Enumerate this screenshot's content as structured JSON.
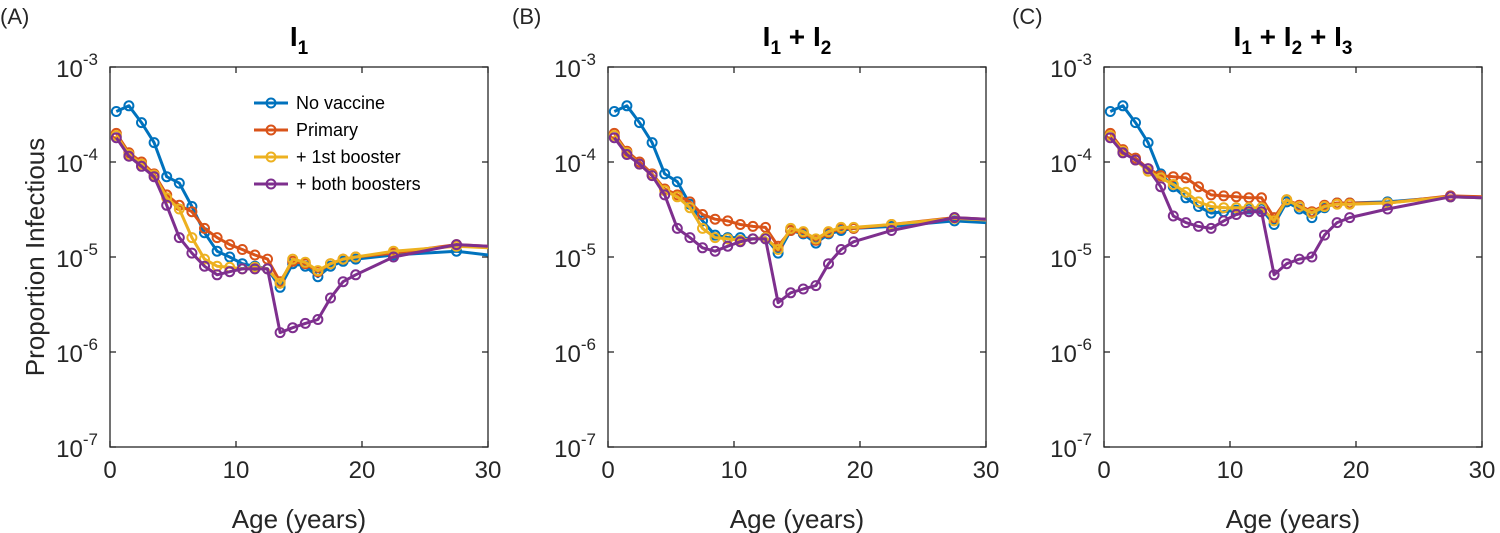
{
  "figure": {
    "y_axis_label": "Proportion Infectious",
    "panels": [
      {
        "label": "(A)",
        "title_parts": [
          {
            "t": "I"
          },
          {
            "s": "1"
          }
        ]
      },
      {
        "label": "(B)",
        "title_parts": [
          {
            "t": "I"
          },
          {
            "s": "1"
          },
          {
            "t": " + I"
          },
          {
            "s": "2"
          }
        ]
      },
      {
        "label": "(C)",
        "title_parts": [
          {
            "t": "I"
          },
          {
            "s": "1"
          },
          {
            "t": " + I"
          },
          {
            "s": "2"
          },
          {
            "t": " + I"
          },
          {
            "s": "3"
          }
        ]
      }
    ]
  },
  "chart_data": [
    {
      "type": "line",
      "title": "I1",
      "xlabel": "Age (years)",
      "ylabel": "Proportion Infectious",
      "xlim": [
        0,
        30
      ],
      "ylim": [
        1e-07,
        0.001
      ],
      "yscale": "log",
      "xticks": [
        0,
        10,
        20,
        30
      ],
      "yticks": [
        {
          "base": "10",
          "exp": "-7",
          "v": 1e-07
        },
        {
          "base": "10",
          "exp": "-6",
          "v": 1e-06
        },
        {
          "base": "10",
          "exp": "-5",
          "v": 1e-05
        },
        {
          "base": "10",
          "exp": "-4",
          "v": 0.0001
        },
        {
          "base": "10",
          "exp": "-3",
          "v": 0.001
        }
      ],
      "grid": false,
      "legend": "top-right",
      "series": [
        {
          "name": "No vaccine",
          "color": "#0072BD",
          "x": [
            0.5,
            1.5,
            2.5,
            3.5,
            4.5,
            5.5,
            6.5,
            7.5,
            8.5,
            9.5,
            10.5,
            11.5,
            12.5,
            13.5,
            14.5,
            15.5,
            16.5,
            17.5,
            18.5,
            19.5,
            22.5,
            27.5,
            30
          ],
          "y": [
            0.00034,
            0.00039,
            0.00026,
            0.00016,
            7e-05,
            6e-05,
            3.4e-05,
            1.8e-05,
            1.15e-05,
            1e-05,
            8.5e-06,
            8e-06,
            7.5e-06,
            4.8e-06,
            8.5e-06,
            8e-06,
            6.2e-06,
            8e-06,
            9e-06,
            9.5e-06,
            1.05e-05,
            1.15e-05,
            1.05e-05
          ]
        },
        {
          "name": "Primary",
          "color": "#D95319",
          "x": [
            0.5,
            1.5,
            2.5,
            3.5,
            4.5,
            5.5,
            6.5,
            7.5,
            8.5,
            9.5,
            10.5,
            11.5,
            12.5,
            13.5,
            14.5,
            15.5,
            16.5,
            17.5,
            18.5,
            19.5,
            22.5,
            27.5,
            30
          ],
          "y": [
            0.0002,
            0.000125,
            0.0001,
            7.5e-05,
            4.5e-05,
            3.5e-05,
            3e-05,
            2e-05,
            1.6e-05,
            1.35e-05,
            1.2e-05,
            1.05e-05,
            9.5e-06,
            5.5e-06,
            9e-06,
            8.5e-06,
            7e-06,
            8.5e-06,
            9.5e-06,
            1e-05,
            1.1e-05,
            1.35e-05,
            1.3e-05
          ]
        },
        {
          "name": "+ 1st booster",
          "color": "#EDB120",
          "x": [
            0.5,
            1.5,
            2.5,
            3.5,
            4.5,
            5.5,
            6.5,
            7.5,
            8.5,
            9.5,
            10.5,
            11.5,
            12.5,
            13.5,
            14.5,
            15.5,
            16.5,
            17.5,
            18.5,
            19.5,
            22.5,
            27.5,
            30
          ],
          "y": [
            0.00019,
            0.00012,
            9.5e-05,
            7.3e-05,
            4.2e-05,
            3.2e-05,
            1.6e-05,
            9.5e-06,
            8e-06,
            7.8e-06,
            7.5e-06,
            7.8e-06,
            7.5e-06,
            5.3e-06,
            9.5e-06,
            8.8e-06,
            7.2e-06,
            8.5e-06,
            9.5e-06,
            1e-05,
            1.15e-05,
            1.3e-05,
            1.25e-05
          ]
        },
        {
          "name": "+ both boosters",
          "color": "#7E2F8E",
          "x": [
            0.5,
            1.5,
            2.5,
            3.5,
            4.5,
            5.5,
            6.5,
            7.5,
            8.5,
            9.5,
            10.5,
            11.5,
            12.5,
            13.5,
            14.5,
            15.5,
            16.5,
            17.5,
            18.5,
            19.5,
            22.5,
            27.5,
            30
          ],
          "y": [
            0.00018,
            0.000115,
            9e-05,
            7e-05,
            3.5e-05,
            1.6e-05,
            1.1e-05,
            8e-06,
            6.5e-06,
            7e-06,
            7.5e-06,
            7.5e-06,
            7.5e-06,
            1.6e-06,
            1.8e-06,
            2e-06,
            2.2e-06,
            3.7e-06,
            5.5e-06,
            6.5e-06,
            1e-05,
            1.35e-05,
            1.3e-05
          ]
        }
      ]
    },
    {
      "type": "line",
      "title": "I1 + I2",
      "xlabel": "Age (years)",
      "ylabel": "",
      "xlim": [
        0,
        30
      ],
      "ylim": [
        1e-07,
        0.001
      ],
      "yscale": "log",
      "xticks": [
        0,
        10,
        20,
        30
      ],
      "yticks": [
        {
          "base": "10",
          "exp": "-7",
          "v": 1e-07
        },
        {
          "base": "10",
          "exp": "-6",
          "v": 1e-06
        },
        {
          "base": "10",
          "exp": "-5",
          "v": 1e-05
        },
        {
          "base": "10",
          "exp": "-4",
          "v": 0.0001
        },
        {
          "base": "10",
          "exp": "-3",
          "v": 0.001
        }
      ],
      "grid": false,
      "series": [
        {
          "name": "No vaccine",
          "color": "#0072BD",
          "x": [
            0.5,
            1.5,
            2.5,
            3.5,
            4.5,
            5.5,
            6.5,
            7.5,
            8.5,
            9.5,
            10.5,
            11.5,
            12.5,
            13.5,
            14.5,
            15.5,
            16.5,
            17.5,
            18.5,
            19.5,
            22.5,
            27.5,
            30
          ],
          "y": [
            0.00034,
            0.00039,
            0.00026,
            0.00016,
            7.5e-05,
            6.2e-05,
            3.6e-05,
            2.4e-05,
            1.7e-05,
            1.6e-05,
            1.6e-05,
            1.55e-05,
            1.6e-05,
            1.1e-05,
            1.9e-05,
            1.75e-05,
            1.4e-05,
            1.75e-05,
            1.9e-05,
            2e-05,
            2.1e-05,
            2.4e-05,
            2.3e-05
          ]
        },
        {
          "name": "Primary",
          "color": "#D95319",
          "x": [
            0.5,
            1.5,
            2.5,
            3.5,
            4.5,
            5.5,
            6.5,
            7.5,
            8.5,
            9.5,
            10.5,
            11.5,
            12.5,
            13.5,
            14.5,
            15.5,
            16.5,
            17.5,
            18.5,
            19.5,
            22.5,
            27.5,
            30
          ],
          "y": [
            0.0002,
            0.00013,
            0.0001,
            7.5e-05,
            5.2e-05,
            4.5e-05,
            3.8e-05,
            2.8e-05,
            2.5e-05,
            2.4e-05,
            2.2e-05,
            2.1e-05,
            2.05e-05,
            1.3e-05,
            1.9e-05,
            1.8e-05,
            1.5e-05,
            1.8e-05,
            2e-05,
            2e-05,
            2.2e-05,
            2.6e-05,
            2.5e-05
          ]
        },
        {
          "name": "+ 1st booster",
          "color": "#EDB120",
          "x": [
            0.5,
            1.5,
            2.5,
            3.5,
            4.5,
            5.5,
            6.5,
            7.5,
            8.5,
            9.5,
            10.5,
            11.5,
            12.5,
            13.5,
            14.5,
            15.5,
            16.5,
            17.5,
            18.5,
            19.5,
            22.5,
            27.5,
            30
          ],
          "y": [
            0.00019,
            0.000125,
            9.5e-05,
            7.3e-05,
            5e-05,
            4.3e-05,
            3.3e-05,
            2e-05,
            1.6e-05,
            1.55e-05,
            1.5e-05,
            1.55e-05,
            1.6e-05,
            1.2e-05,
            2e-05,
            1.85e-05,
            1.55e-05,
            1.85e-05,
            2.05e-05,
            2.05e-05,
            2.2e-05,
            2.55e-05,
            2.45e-05
          ]
        },
        {
          "name": "+ both boosters",
          "color": "#7E2F8E",
          "x": [
            0.5,
            1.5,
            2.5,
            3.5,
            4.5,
            5.5,
            6.5,
            7.5,
            8.5,
            9.5,
            10.5,
            11.5,
            12.5,
            13.5,
            14.5,
            15.5,
            16.5,
            17.5,
            18.5,
            19.5,
            22.5,
            27.5,
            30
          ],
          "y": [
            0.00018,
            0.00012,
            9.5e-05,
            7.2e-05,
            4.5e-05,
            2e-05,
            1.6e-05,
            1.25e-05,
            1.15e-05,
            1.3e-05,
            1.45e-05,
            1.55e-05,
            1.55e-05,
            3.3e-06,
            4.2e-06,
            4.6e-06,
            5e-06,
            8.5e-06,
            1.2e-05,
            1.45e-05,
            1.9e-05,
            2.6e-05,
            2.5e-05
          ]
        }
      ]
    },
    {
      "type": "line",
      "title": "I1 + I2 + I3",
      "xlabel": "Age (years)",
      "ylabel": "",
      "xlim": [
        0,
        30
      ],
      "ylim": [
        1e-07,
        0.001
      ],
      "yscale": "log",
      "xticks": [
        0,
        10,
        20,
        30
      ],
      "yticks": [
        {
          "base": "10",
          "exp": "-7",
          "v": 1e-07
        },
        {
          "base": "10",
          "exp": "-6",
          "v": 1e-06
        },
        {
          "base": "10",
          "exp": "-5",
          "v": 1e-05
        },
        {
          "base": "10",
          "exp": "-4",
          "v": 0.0001
        },
        {
          "base": "10",
          "exp": "-3",
          "v": 0.001
        }
      ],
      "grid": false,
      "series": [
        {
          "name": "No vaccine",
          "color": "#0072BD",
          "x": [
            0.5,
            1.5,
            2.5,
            3.5,
            4.5,
            5.5,
            6.5,
            7.5,
            8.5,
            9.5,
            10.5,
            11.5,
            12.5,
            13.5,
            14.5,
            15.5,
            16.5,
            17.5,
            18.5,
            19.5,
            22.5,
            27.5,
            30
          ],
          "y": [
            0.00034,
            0.00039,
            0.00026,
            0.00016,
            7.5e-05,
            5.5e-05,
            4.2e-05,
            3.4e-05,
            2.9e-05,
            3e-05,
            3.1e-05,
            3.2e-05,
            3.2e-05,
            2.2e-05,
            3.8e-05,
            3.2e-05,
            2.6e-05,
            3.3e-05,
            3.7e-05,
            3.7e-05,
            3.8e-05,
            4.3e-05,
            4.2e-05
          ]
        },
        {
          "name": "Primary",
          "color": "#D95319",
          "x": [
            0.5,
            1.5,
            2.5,
            3.5,
            4.5,
            5.5,
            6.5,
            7.5,
            8.5,
            9.5,
            10.5,
            11.5,
            12.5,
            13.5,
            14.5,
            15.5,
            16.5,
            17.5,
            18.5,
            19.5,
            22.5,
            27.5,
            30
          ],
          "y": [
            0.0002,
            0.000135,
            0.00011,
            8.5e-05,
            7.2e-05,
            7e-05,
            6.8e-05,
            5.5e-05,
            4.5e-05,
            4.4e-05,
            4.3e-05,
            4.2e-05,
            4.2e-05,
            2.6e-05,
            4e-05,
            3.5e-05,
            3e-05,
            3.5e-05,
            3.7e-05,
            3.7e-05,
            3.7e-05,
            4.4e-05,
            4.3e-05
          ]
        },
        {
          "name": "+ 1st booster",
          "color": "#EDB120",
          "x": [
            0.5,
            1.5,
            2.5,
            3.5,
            4.5,
            5.5,
            6.5,
            7.5,
            8.5,
            9.5,
            10.5,
            11.5,
            12.5,
            13.5,
            14.5,
            15.5,
            16.5,
            17.5,
            18.5,
            19.5,
            22.5,
            27.5,
            30
          ],
          "y": [
            0.00019,
            0.00013,
            0.000105,
            8e-05,
            6.8e-05,
            5.8e-05,
            4.8e-05,
            3.8e-05,
            3.4e-05,
            3.3e-05,
            3.3e-05,
            3.3e-05,
            3.3e-05,
            2.4e-05,
            4e-05,
            3.4e-05,
            2.9e-05,
            3.4e-05,
            3.6e-05,
            3.6e-05,
            3.7e-05,
            4.3e-05,
            4.2e-05
          ]
        },
        {
          "name": "+ both boosters",
          "color": "#7E2F8E",
          "x": [
            0.5,
            1.5,
            2.5,
            3.5,
            4.5,
            5.5,
            6.5,
            7.5,
            8.5,
            9.5,
            10.5,
            11.5,
            12.5,
            13.5,
            14.5,
            15.5,
            16.5,
            17.5,
            18.5,
            19.5,
            22.5,
            27.5,
            30
          ],
          "y": [
            0.00018,
            0.000125,
            0.000105,
            8.5e-05,
            5.5e-05,
            2.7e-05,
            2.3e-05,
            2.1e-05,
            2e-05,
            2.4e-05,
            2.8e-05,
            3e-05,
            3e-05,
            6.5e-06,
            8.5e-06,
            9.5e-06,
            1e-05,
            1.7e-05,
            2.3e-05,
            2.6e-05,
            3.2e-05,
            4.3e-05,
            4.2e-05
          ]
        }
      ]
    }
  ]
}
